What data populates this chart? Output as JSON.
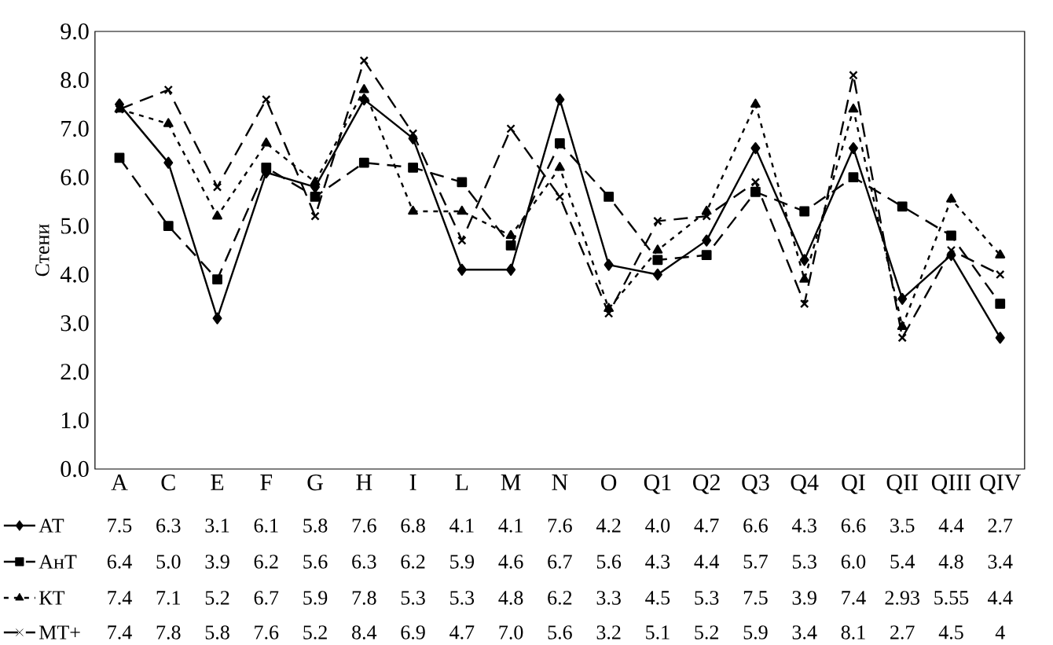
{
  "chart_data": {
    "type": "line",
    "ylabel": "Стени",
    "categories": [
      "A",
      "C",
      "E",
      "F",
      "G",
      "H",
      "I",
      "L",
      "M",
      "N",
      "O",
      "Q1",
      "Q2",
      "Q3",
      "Q4",
      "QI",
      "QII",
      "QIII",
      "QIV"
    ],
    "ylim": [
      0,
      9
    ],
    "yticks": [
      {
        "value": 0,
        "label": "0.0"
      },
      {
        "value": 1,
        "label": "1.0"
      },
      {
        "value": 2,
        "label": "2.0"
      },
      {
        "value": 3,
        "label": "3.0"
      },
      {
        "value": 4,
        "label": "4.0"
      },
      {
        "value": 5,
        "label": "5.0"
      },
      {
        "value": 6,
        "label": "6.0"
      },
      {
        "value": 7,
        "label": "7.0"
      },
      {
        "value": 8,
        "label": "8.0"
      },
      {
        "value": 9,
        "label": "9.0"
      }
    ],
    "legend": "bottom",
    "series": [
      {
        "name": "АТ",
        "color": "#000000",
        "marker": "diamond",
        "line_style": "solid",
        "values": [
          7.5,
          6.3,
          3.1,
          6.1,
          5.8,
          7.6,
          6.8,
          4.1,
          4.1,
          7.6,
          4.2,
          4.0,
          4.7,
          6.6,
          4.3,
          6.6,
          3.5,
          4.4,
          2.7
        ],
        "value_labels": [
          "7.5",
          "6.3",
          "3.1",
          "6.1",
          "5.8",
          "7.6",
          "6.8",
          "4.1",
          "4.1",
          "7.6",
          "4.2",
          "4.0",
          "4.7",
          "6.6",
          "4.3",
          "6.6",
          "3.5",
          "4.4",
          "2.7"
        ]
      },
      {
        "name": "АнТ",
        "color": "#000000",
        "marker": "square",
        "line_style": "dashed",
        "values": [
          6.4,
          5.0,
          3.9,
          6.2,
          5.6,
          6.3,
          6.2,
          5.9,
          4.6,
          6.7,
          5.6,
          4.3,
          4.4,
          5.7,
          5.3,
          6.0,
          5.4,
          4.8,
          3.4
        ],
        "value_labels": [
          "6.4",
          "5.0",
          "3.9",
          "6.2",
          "5.6",
          "6.3",
          "6.2",
          "5.9",
          "4.6",
          "6.7",
          "5.6",
          "4.3",
          "4.4",
          "5.7",
          "5.3",
          "6.0",
          "5.4",
          "4.8",
          "3.4"
        ]
      },
      {
        "name": "КТ",
        "color": "#000000",
        "marker": "triangle",
        "line_style": "dotted",
        "values": [
          7.4,
          7.1,
          5.2,
          6.7,
          5.9,
          7.8,
          5.3,
          5.3,
          4.8,
          6.2,
          3.3,
          4.5,
          5.3,
          7.5,
          3.9,
          7.4,
          2.93,
          5.55,
          4.4
        ],
        "value_labels": [
          "7.4",
          "7.1",
          "5.2",
          "6.7",
          "5.9",
          "7.8",
          "5.3",
          "5.3",
          "4.8",
          "6.2",
          "3.3",
          "4.5",
          "5.3",
          "7.5",
          "3.9",
          "7.4",
          "2.93",
          "5.55",
          "4.4"
        ]
      },
      {
        "name": "МТ+",
        "color": "#000000",
        "marker": "cross",
        "line_style": "dashed",
        "values": [
          7.4,
          7.8,
          5.8,
          7.6,
          5.2,
          8.4,
          6.9,
          4.7,
          7.0,
          5.6,
          3.2,
          5.1,
          5.2,
          5.9,
          3.4,
          8.1,
          2.7,
          4.5,
          4
        ],
        "value_labels": [
          "7.4",
          "7.8",
          "5.8",
          "7.6",
          "5.2",
          "8.4",
          "6.9",
          "4.7",
          "7.0",
          "5.6",
          "3.2",
          "5.1",
          "5.2",
          "5.9",
          "3.4",
          "8.1",
          "2.7",
          "4.5",
          "4"
        ]
      }
    ]
  }
}
